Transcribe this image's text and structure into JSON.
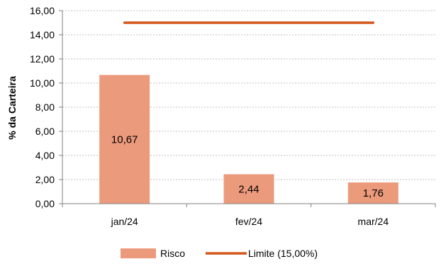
{
  "chart_data": {
    "type": "bar",
    "categories": [
      "jan/24",
      "fev/24",
      "mar/24"
    ],
    "series": [
      {
        "name": "Risco",
        "type": "bar",
        "values": [
          10.67,
          2.44,
          1.76
        ],
        "labels": [
          "10,67",
          "2,44",
          "1,76"
        ],
        "color": "#ec9a7c"
      },
      {
        "name": "Limite (15,00%)",
        "type": "line",
        "values": [
          15.0,
          15.0,
          15.0
        ],
        "color": "#d4561b"
      }
    ],
    "ylabel": "% da Carteira",
    "xlabel": "",
    "ylim": [
      0,
      16
    ],
    "yticks": [
      0,
      2,
      4,
      6,
      8,
      10,
      12,
      14,
      16
    ],
    "ytick_labels": [
      "0,00",
      "2,00",
      "4,00",
      "6,00",
      "8,00",
      "10,00",
      "12,00",
      "14,00",
      "16,00"
    ],
    "grid": true,
    "legend_position": "bottom"
  }
}
